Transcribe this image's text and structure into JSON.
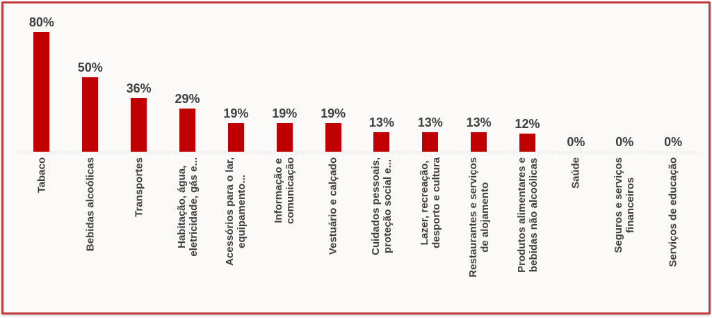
{
  "chart_data": {
    "type": "bar",
    "title": "",
    "categories": [
      "Tabaco",
      "Bebidas alcoólicas",
      "Transportes",
      "Habitação, água,\neletricidade, gás e...",
      "Acessórios para o lar,\nequipamento...",
      "Informação e\ncomunicação",
      "Vestuário e calçado",
      "Cuidados pessoais,\nproteção social e...",
      "Lazer, recreação,\ndesporto e cultura",
      "Restaurantes e serviços\nde alojamento",
      "Produtos alimentares e\nbebidas não alcoólicas",
      "Saúde",
      "Seguros e serviços\nfinanceiros",
      "Serviços de educação"
    ],
    "values": [
      80,
      50,
      36,
      29,
      19,
      19,
      19,
      13,
      13,
      13,
      12,
      0,
      0,
      0
    ],
    "value_labels": [
      "80%",
      "50%",
      "36%",
      "29%",
      "19%",
      "19%",
      "19%",
      "13%",
      "13%",
      "13%",
      "12%",
      "0%",
      "0%",
      "0%"
    ],
    "value_suffix": "%",
    "xlabel": "",
    "ylabel": "",
    "ylim": [
      0,
      100
    ],
    "grid": false,
    "legend": false,
    "data_labels": true,
    "axis_line_style": "dotted"
  },
  "colors": {
    "bar": "#C00000",
    "frame_border": "#C43B3B",
    "label_text": "#3F3F3F",
    "background": "#FAF9F8",
    "axis_line": "#D3D3D3"
  }
}
